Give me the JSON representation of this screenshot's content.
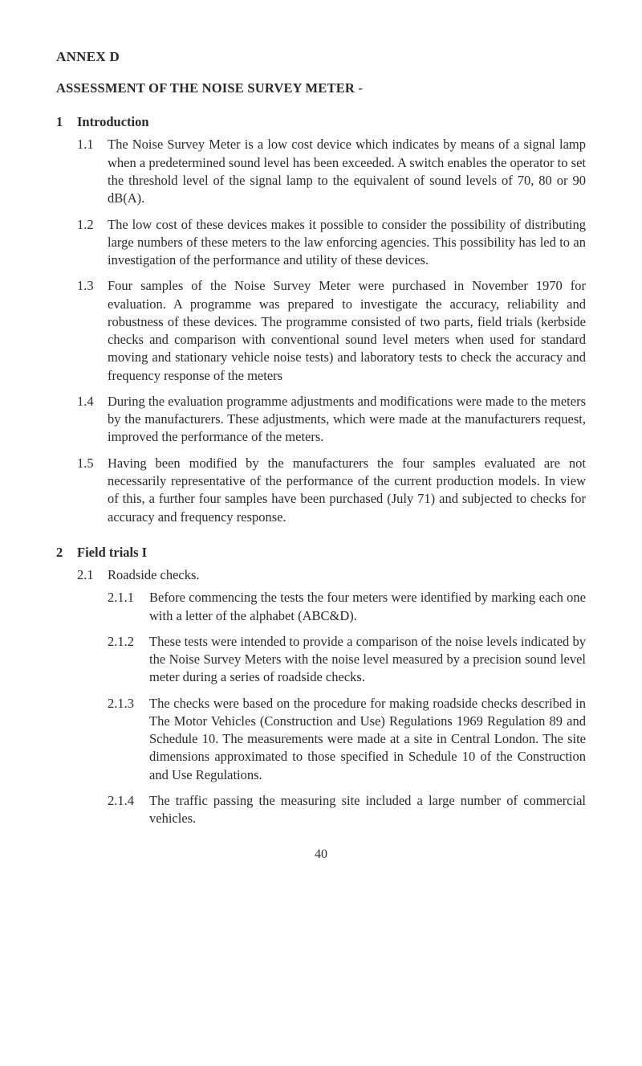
{
  "annex": "ANNEX D",
  "title": "ASSESSMENT OF THE NOISE SURVEY METER",
  "title_suffix": " -",
  "page_number": "40",
  "sections": [
    {
      "number": "1",
      "heading": "Introduction",
      "items": [
        {
          "num": "1.1",
          "text": "The Noise Survey Meter is a low cost device which indicates by means of a signal lamp when a predetermined sound level has been exceeded. A switch enables the operator to set the threshold level of the signal lamp to the equivalent of sound levels of 70, 80 or 90 dB(A)."
        },
        {
          "num": "1.2",
          "text": "The low cost of these devices makes it possible to consider the possibility of distributing large numbers of these meters to the law enforcing agencies. This possibility has led to an investigation of the performance and utility of these devices."
        },
        {
          "num": "1.3",
          "text": "Four samples of the Noise Survey Meter were purchased in November 1970 for evaluation. A programme was prepared to investigate the accuracy, reliability and robustness of these devices. The programme consisted of two parts, field trials (kerbside checks and comparison with conventional sound level meters when used for standard moving and stationary vehicle noise tests) and laboratory tests to check the accuracy and frequency response of the meters"
        },
        {
          "num": "1.4",
          "text": "During the evaluation programme adjustments and modifications were made to the meters by the manufacturers. These adjustments, which were made at the manufacturers request, improved the performance of the meters."
        },
        {
          "num": "1.5",
          "text": "Having been modified by the manufacturers the four samples evaluated are not necessarily representative of the performance of the current production models. In view of this, a further four samples have been purchased (July 71) and subjected to checks for accuracy and frequency response."
        }
      ]
    },
    {
      "number": "2",
      "heading": "Field trials I",
      "sub_heading": {
        "num": "2.1",
        "text": "Roadside checks."
      },
      "sub_items": [
        {
          "num": "2.1.1",
          "text": "Before commencing the tests the four meters were identified by marking each one with a letter of the alphabet (ABC&D)."
        },
        {
          "num": "2.1.2",
          "text": "These tests were intended to provide a comparison of the noise levels indicated by the Noise Survey Meters with the noise level measured by a precision sound level meter during a series of roadside checks."
        },
        {
          "num": "2.1.3",
          "text": "The checks were based on the procedure for making roadside checks described in The Motor Vehicles (Construction and Use) Regulations 1969 Regulation 89 and Schedule 10. The measurements were made at a site in Central London. The site dimensions approximated to those specified in Schedule 10 of the Construction and Use Regulations."
        },
        {
          "num": "2.1.4",
          "text": "The traffic passing the measuring site included a large number of commercial vehicles."
        }
      ]
    }
  ]
}
